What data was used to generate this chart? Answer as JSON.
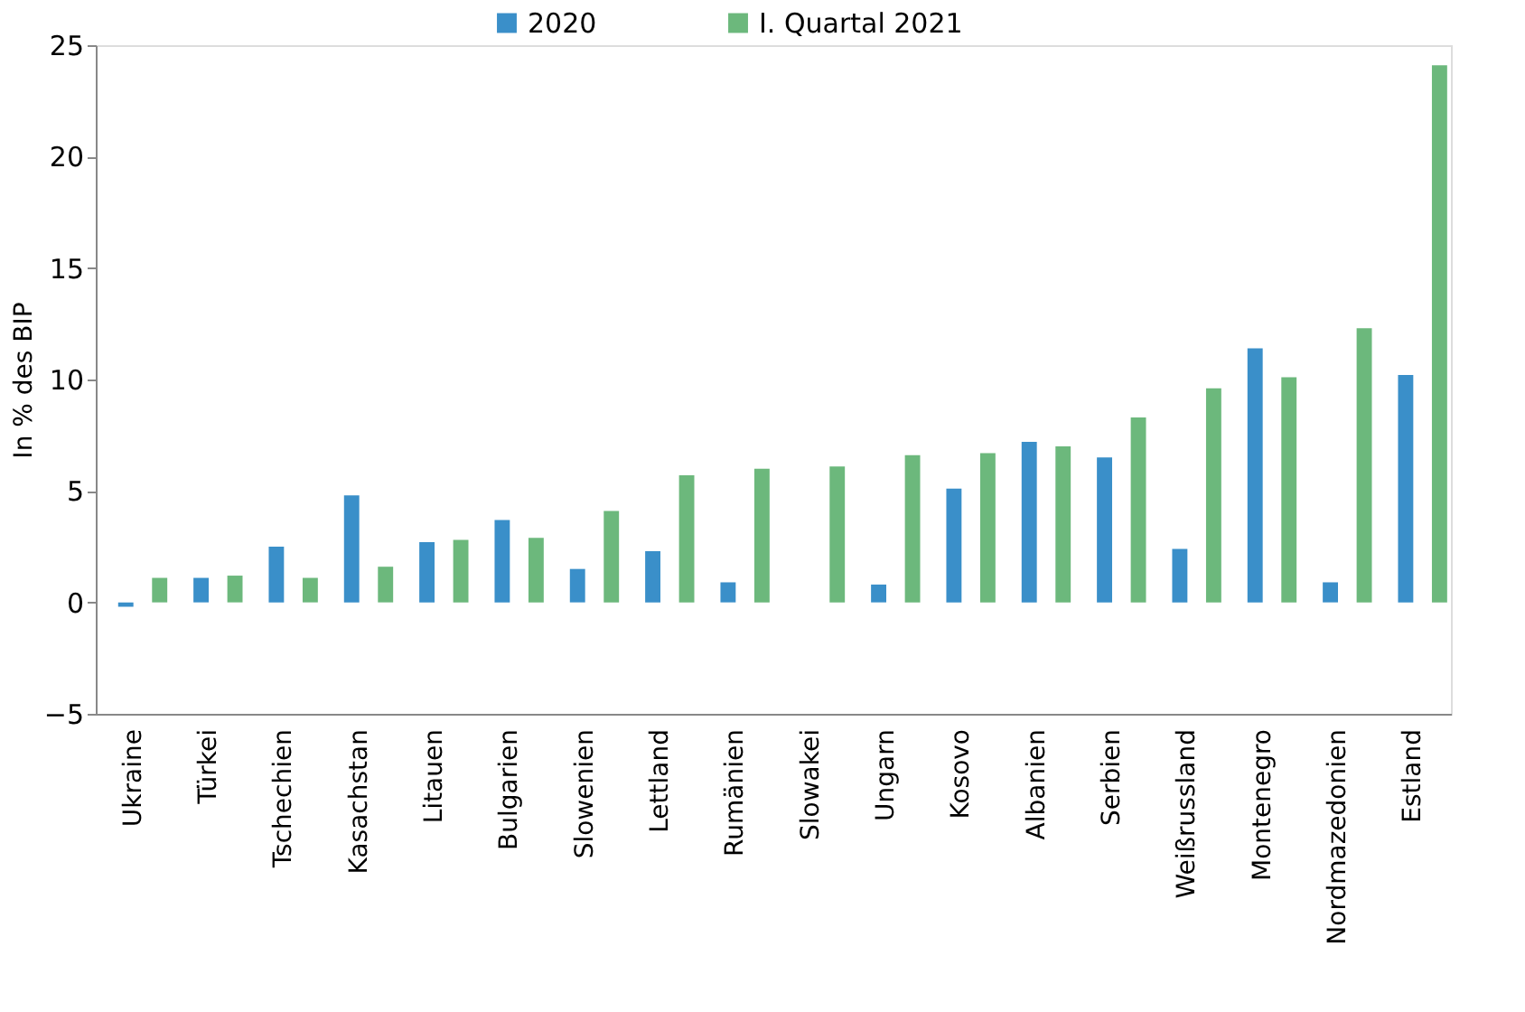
{
  "chart_data": {
    "type": "bar",
    "ylabel": "In % des BIP",
    "categories": [
      "Ukraine",
      "Türkei",
      "Tschechien",
      "Kasachstan",
      "Litauen",
      "Bulgarien",
      "Slowenien",
      "Lettland",
      "Rumänien",
      "Slowakei",
      "Ungarn",
      "Kosovo",
      "Albanien",
      "Serbien",
      "Weißrussland",
      "Montenegro",
      "Nordmazedonien",
      "Estland"
    ],
    "series": [
      {
        "name": "2020",
        "color": "#3a8fc9",
        "values": [
          -0.2,
          1.1,
          2.5,
          4.8,
          2.7,
          3.7,
          1.5,
          2.3,
          0.9,
          null,
          0.8,
          5.1,
          7.2,
          6.5,
          2.4,
          11.4,
          0.9,
          10.2
        ]
      },
      {
        "name": "I. Quartal 2021",
        "color": "#6cb87c",
        "values": [
          1.1,
          1.2,
          1.1,
          1.6,
          2.8,
          2.9,
          4.1,
          5.7,
          6.0,
          6.1,
          6.6,
          6.7,
          7.0,
          8.3,
          9.6,
          10.1,
          12.3,
          24.1
        ]
      }
    ],
    "ylim": [
      -5,
      25
    ],
    "yticks": [
      -5,
      0,
      5,
      10,
      15,
      20,
      25
    ],
    "grid": false,
    "legend": "top"
  }
}
